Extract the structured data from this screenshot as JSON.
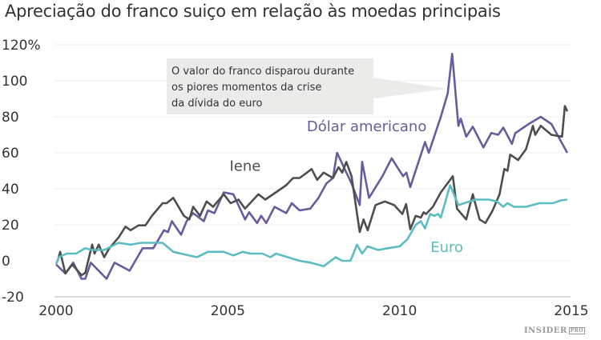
{
  "chart_data": {
    "type": "line",
    "title": "Apreciação do franco suiço em relação às moedas principais",
    "xlim": [
      2000,
      2015
    ],
    "ylim": [
      -20,
      120
    ],
    "x_ticks": [
      "2000",
      "2005",
      "2010",
      "2015"
    ],
    "x_tick_values": [
      2000,
      2005,
      2010,
      2015
    ],
    "y_ticks": [
      "120%",
      "100",
      "80",
      "60",
      "40",
      "20",
      "0",
      "-20"
    ],
    "y_tick_values": [
      120,
      100,
      80,
      60,
      40,
      20,
      0,
      -20
    ],
    "grid": "horizontal",
    "annotation": [
      "O valor do franco disparou durante",
      "os piores momentos da crise",
      "da dívida do euro"
    ],
    "annotation_points_to": [
      2011.4,
      100
    ],
    "series": [
      {
        "name": "Dólar americano",
        "color": "#6a5b9c",
        "label_at": [
          2007.3,
          72
        ],
        "points": [
          [
            2000,
            -2
          ],
          [
            2000.27,
            -7
          ],
          [
            2000.5,
            -1
          ],
          [
            2000.74,
            -10
          ],
          [
            2000.85,
            -10
          ],
          [
            2001.01,
            -1
          ],
          [
            2001.47,
            -10
          ],
          [
            2001.7,
            -1
          ],
          [
            2002.14,
            -5.5
          ],
          [
            2002.52,
            7
          ],
          [
            2002.83,
            7
          ],
          [
            2003.14,
            17
          ],
          [
            2003.26,
            16
          ],
          [
            2003.37,
            22
          ],
          [
            2003.64,
            14.5
          ],
          [
            2003.8,
            22
          ],
          [
            2003.99,
            26.5
          ],
          [
            2004.3,
            22
          ],
          [
            2004.42,
            28
          ],
          [
            2004.61,
            26.5
          ],
          [
            2004.88,
            38
          ],
          [
            2005.16,
            37
          ],
          [
            2005.5,
            23
          ],
          [
            2005.62,
            27
          ],
          [
            2005.85,
            21
          ],
          [
            2005.97,
            25
          ],
          [
            2006.12,
            21
          ],
          [
            2006.36,
            30
          ],
          [
            2006.7,
            26.5
          ],
          [
            2006.86,
            32
          ],
          [
            2007.09,
            28
          ],
          [
            2007.4,
            29
          ],
          [
            2007.64,
            35
          ],
          [
            2007.87,
            43
          ],
          [
            2008.06,
            46
          ],
          [
            2008.18,
            60
          ],
          [
            2008.6,
            43
          ],
          [
            2008.84,
            31
          ],
          [
            2008.91,
            55
          ],
          [
            2009.11,
            35
          ],
          [
            2009.5,
            47
          ],
          [
            2009.77,
            57
          ],
          [
            2010.1,
            47
          ],
          [
            2010.2,
            49
          ],
          [
            2010.31,
            41
          ],
          [
            2010.74,
            66
          ],
          [
            2010.85,
            60
          ],
          [
            2011.2,
            80
          ],
          [
            2011.4,
            93
          ],
          [
            2011.53,
            115
          ],
          [
            2011.71,
            75
          ],
          [
            2011.78,
            79
          ],
          [
            2011.94,
            69
          ],
          [
            2012.13,
            74.5
          ],
          [
            2012.44,
            63
          ],
          [
            2012.67,
            71
          ],
          [
            2012.87,
            70
          ],
          [
            2013.02,
            74
          ],
          [
            2013.27,
            65
          ],
          [
            2013.37,
            71
          ],
          [
            2013.76,
            76
          ],
          [
            2014.11,
            80
          ],
          [
            2014.42,
            76
          ],
          [
            2014.88,
            60
          ]
        ]
      },
      {
        "name": "Iene",
        "color": "#4d4f4f",
        "label_at": [
          2005.05,
          50
        ],
        "points": [
          [
            2000.04,
            -0.3
          ],
          [
            2000.12,
            5
          ],
          [
            2000.27,
            -7
          ],
          [
            2000.47,
            -2
          ],
          [
            2000.74,
            -8
          ],
          [
            2000.85,
            -6.7
          ],
          [
            2001.05,
            9
          ],
          [
            2001.12,
            4
          ],
          [
            2001.24,
            9
          ],
          [
            2001.4,
            2
          ],
          [
            2001.55,
            7
          ],
          [
            2001.82,
            13
          ],
          [
            2002.02,
            19
          ],
          [
            2002.17,
            17
          ],
          [
            2002.4,
            19.7
          ],
          [
            2002.6,
            19.7
          ],
          [
            2002.79,
            25
          ],
          [
            2003.1,
            32
          ],
          [
            2003.22,
            32
          ],
          [
            2003.41,
            35
          ],
          [
            2003.72,
            25
          ],
          [
            2003.88,
            23
          ],
          [
            2003.99,
            30
          ],
          [
            2004.19,
            25
          ],
          [
            2004.38,
            33
          ],
          [
            2004.57,
            30
          ],
          [
            2004.88,
            37
          ],
          [
            2005.08,
            32
          ],
          [
            2005.31,
            34
          ],
          [
            2005.5,
            29
          ],
          [
            2005.89,
            37
          ],
          [
            2006.09,
            34
          ],
          [
            2006.7,
            42
          ],
          [
            2006.9,
            46
          ],
          [
            2007.09,
            46
          ],
          [
            2007.44,
            51
          ],
          [
            2007.6,
            45
          ],
          [
            2007.79,
            49
          ],
          [
            2008.06,
            46
          ],
          [
            2008.22,
            52
          ],
          [
            2008.33,
            49
          ],
          [
            2008.45,
            55
          ],
          [
            2008.6,
            47
          ],
          [
            2008.84,
            16
          ],
          [
            2008.95,
            23
          ],
          [
            2009.07,
            17
          ],
          [
            2009.3,
            31
          ],
          [
            2009.57,
            33
          ],
          [
            2009.84,
            31
          ],
          [
            2010.08,
            26
          ],
          [
            2010.19,
            31.5
          ],
          [
            2010.31,
            17.5
          ],
          [
            2010.47,
            25
          ],
          [
            2010.62,
            24
          ],
          [
            2010.7,
            27
          ],
          [
            2010.77,
            26
          ],
          [
            2010.97,
            30
          ],
          [
            2011.2,
            38
          ],
          [
            2011.55,
            47
          ],
          [
            2011.67,
            29
          ],
          [
            2011.94,
            23
          ],
          [
            2012.13,
            37
          ],
          [
            2012.33,
            23
          ],
          [
            2012.5,
            21
          ],
          [
            2012.71,
            28
          ],
          [
            2012.91,
            37
          ],
          [
            2013.05,
            51
          ],
          [
            2013.14,
            50
          ],
          [
            2013.22,
            59
          ],
          [
            2013.45,
            56
          ],
          [
            2013.68,
            62
          ],
          [
            2013.88,
            75
          ],
          [
            2013.95,
            70
          ],
          [
            2014.11,
            75
          ],
          [
            2014.42,
            70
          ],
          [
            2014.73,
            69
          ],
          [
            2014.81,
            86
          ],
          [
            2014.88,
            83
          ]
        ]
      },
      {
        "name": "Euro",
        "color": "#5bbdc2",
        "label_at": [
          2010.9,
          5
        ],
        "points": [
          [
            2000,
            -2
          ],
          [
            2000.08,
            2
          ],
          [
            2000.31,
            4
          ],
          [
            2000.58,
            4
          ],
          [
            2000.85,
            7
          ],
          [
            2001.05,
            6
          ],
          [
            2001.4,
            6
          ],
          [
            2001.82,
            10
          ],
          [
            2002.17,
            9
          ],
          [
            2002.48,
            10
          ],
          [
            2003.1,
            10
          ],
          [
            2003.41,
            5
          ],
          [
            2004.1,
            2
          ],
          [
            2004.42,
            5
          ],
          [
            2004.88,
            5
          ],
          [
            2005.16,
            3
          ],
          [
            2005.43,
            5
          ],
          [
            2005.66,
            4
          ],
          [
            2006.01,
            4
          ],
          [
            2006.24,
            2
          ],
          [
            2006.4,
            4
          ],
          [
            2007.09,
            0
          ],
          [
            2007.4,
            -1
          ],
          [
            2007.79,
            -3
          ],
          [
            2008.14,
            2
          ],
          [
            2008.33,
            0
          ],
          [
            2008.57,
            0
          ],
          [
            2008.76,
            9
          ],
          [
            2008.91,
            4
          ],
          [
            2009.07,
            8
          ],
          [
            2009.38,
            6
          ],
          [
            2009.65,
            7
          ],
          [
            2010,
            8
          ],
          [
            2010.23,
            12
          ],
          [
            2010.47,
            20
          ],
          [
            2010.62,
            22
          ],
          [
            2010.74,
            18
          ],
          [
            2010.89,
            26
          ],
          [
            2011.01,
            25
          ],
          [
            2011.12,
            26
          ],
          [
            2011.2,
            24
          ],
          [
            2011.47,
            42
          ],
          [
            2011.71,
            31
          ],
          [
            2012.21,
            34
          ],
          [
            2012.6,
            34
          ],
          [
            2012.83,
            33
          ],
          [
            2013.02,
            30
          ],
          [
            2013.14,
            32
          ],
          [
            2013.33,
            30
          ],
          [
            2013.68,
            30
          ],
          [
            2014.07,
            32
          ],
          [
            2014.46,
            32
          ],
          [
            2014.69,
            33.5
          ],
          [
            2014.88,
            34
          ]
        ]
      }
    ]
  },
  "logo": {
    "main": "INSIDER",
    "sub": "PRO"
  }
}
